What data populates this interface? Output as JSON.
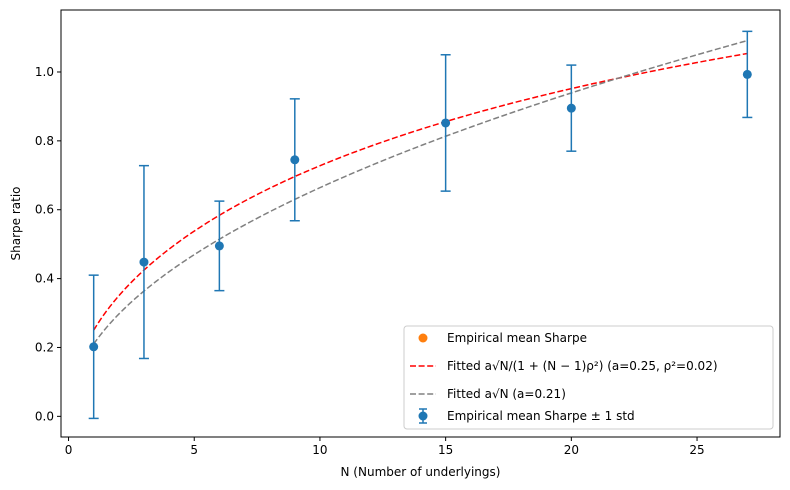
{
  "chart_data": {
    "type": "scatter",
    "title": "",
    "xlabel": "N (Number of underlyings)",
    "ylabel": "Sharpe ratio",
    "xlim": [
      -0.3,
      28.3
    ],
    "ylim": [
      -0.06,
      1.18
    ],
    "xticks": [
      0,
      5,
      10,
      15,
      20,
      25
    ],
    "yticks": [
      0.0,
      0.2,
      0.4,
      0.6,
      0.8,
      1.0
    ],
    "xtick_labels": [
      "0",
      "5",
      "10",
      "15",
      "20",
      "25"
    ],
    "ytick_labels": [
      "0.0",
      "0.2",
      "0.4",
      "0.6",
      "0.8",
      "1.0"
    ],
    "grid": false,
    "legend_position": "lower-right",
    "series": [
      {
        "name": "Empirical mean Sharpe ± 1 std",
        "kind": "errorbar",
        "color": "#1f77b4",
        "x": [
          1,
          3,
          6,
          9,
          15,
          20,
          27
        ],
        "y": [
          0.202,
          0.448,
          0.495,
          0.745,
          0.852,
          0.895,
          0.993
        ],
        "yerr": [
          0.208,
          0.28,
          0.13,
          0.177,
          0.198,
          0.125,
          0.125
        ]
      },
      {
        "name": "Fitted a√(N/(1+(N−1)ρ²)) (a=0.25, ρ²=0.02)",
        "kind": "line",
        "style": "dashed",
        "color": "#ff0000",
        "formula": "a*sqrt(N/(1+(N-1)*rho2))",
        "a": 0.25,
        "rho2": 0.02,
        "x_range": [
          1,
          27
        ]
      },
      {
        "name": "Fitted a√N (a=0.21)",
        "kind": "line",
        "style": "dashed",
        "color": "#808080",
        "formula": "a*sqrt(N)",
        "a": 0.21,
        "x_range": [
          1,
          27
        ]
      },
      {
        "name": "Empirical mean Sharpe",
        "kind": "legend-only",
        "color": "#ff7f0e"
      }
    ],
    "legend": [
      {
        "label_text": "Empirical mean Sharpe",
        "marker": "dot",
        "color": "#ff7f0e"
      },
      {
        "label_text": "Fitted a√N/(1 + (N − 1)ρ²)  (a=0.25, ρ²=0.02)",
        "marker": "dash",
        "color": "#ff0000"
      },
      {
        "label_text": "Fitted a√N  (a=0.21)",
        "marker": "dash",
        "color": "#808080"
      },
      {
        "label_text": "Empirical mean Sharpe ± 1 std",
        "marker": "errorbar",
        "color": "#1f77b4"
      }
    ]
  }
}
